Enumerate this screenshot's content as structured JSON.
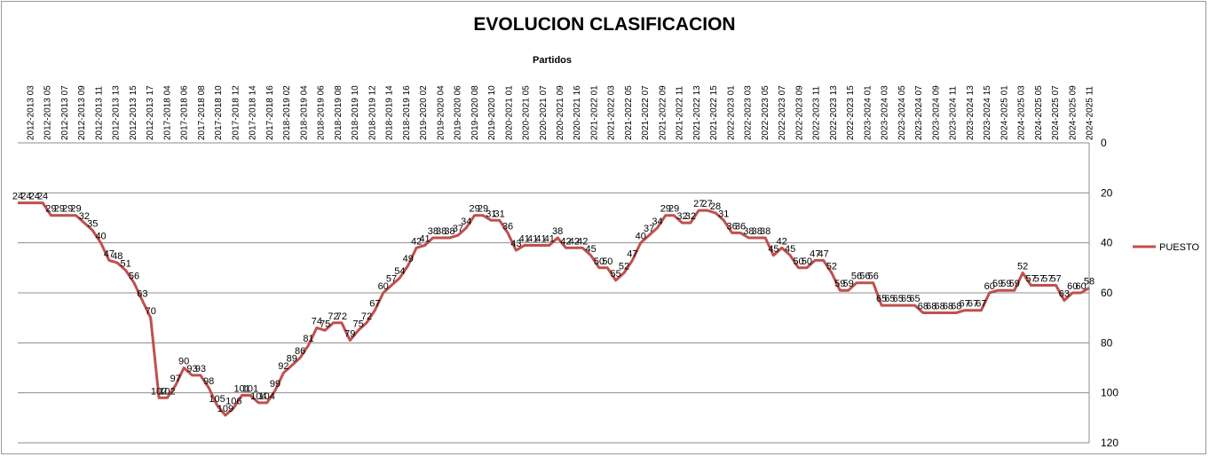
{
  "chart_data": {
    "type": "line",
    "title": "EVOLUCION CLASIFICACION",
    "xlabel": "Partidos",
    "ylabel": "",
    "ylim": [
      0,
      120
    ],
    "y_reversed": true,
    "y_ticks": [
      0,
      20,
      40,
      60,
      80,
      100,
      120
    ],
    "grid": true,
    "legend_position": "right",
    "x_axis_position": "top",
    "y_axis_position": "right",
    "series_color": "#c0504d",
    "x_tick_labels": [
      "2012-2013 03",
      "2012-2013 05",
      "2012-2013 07",
      "2012-2013 09",
      "2012-2013 11",
      "2012-2013 13",
      "2012-2013 15",
      "2012-2013 17",
      "2017-2018 04",
      "2017-2018 06",
      "2017-2018 08",
      "2017-2018 10",
      "2017-2018 12",
      "2017-2018 14",
      "2017-2018 16",
      "2018-2019 02",
      "2018-2019 04",
      "2018-2019 06",
      "2018-2019 08",
      "2018-2019 10",
      "2018-2019 12",
      "2018-2019 14",
      "2018-2019 16",
      "2019-2020 02",
      "2019-2020 04",
      "2019-2020 06",
      "2019-2020 08",
      "2019-2020 10",
      "2020-2021 01",
      "2020-2021 05",
      "2020-2021 07",
      "2020-2021 09",
      "2020-2021 16",
      "2021-2022 01",
      "2021-2022 03",
      "2021-2022 05",
      "2021-2022 07",
      "2021-2022 09",
      "2021-2022 11",
      "2021-2022 13",
      "2021-2022 15",
      "2022-2023 01",
      "2022-2023 03",
      "2022-2023 05",
      "2022-2023 07",
      "2022-2023 09",
      "2022-2023 11",
      "2022-2023 13",
      "2022-2023 15",
      "2023-2024 01",
      "2023-2024 03",
      "2023-2024 05",
      "2023-2024 07",
      "2023-2024 09",
      "2023-2024 11",
      "2023-2024 13",
      "2023-2024 15",
      "2024-2025 01",
      "2024-2025 03",
      "2024-2025 05",
      "2024-2025 07",
      "2024-2025 09",
      "2024-2025 11"
    ],
    "series": [
      {
        "name": "PUESTO",
        "values": [
          24,
          24,
          24,
          24,
          29,
          29,
          29,
          29,
          32,
          35,
          40,
          47,
          48,
          51,
          56,
          63,
          70,
          102,
          102,
          97,
          90,
          93,
          93,
          98,
          105,
          109,
          106,
          101,
          101,
          104,
          104,
          99,
          92,
          89,
          86,
          81,
          74,
          75,
          72,
          72,
          79,
          75,
          72,
          67,
          60,
          57,
          54,
          49,
          42,
          41,
          38,
          38,
          38,
          37,
          34,
          29,
          29,
          31,
          31,
          36,
          43,
          41,
          41,
          41,
          41,
          38,
          42,
          42,
          42,
          45,
          50,
          50,
          55,
          52,
          47,
          40,
          37,
          34,
          29,
          29,
          32,
          32,
          27,
          27,
          28,
          31,
          36,
          36,
          38,
          38,
          38,
          45,
          42,
          45,
          50,
          50,
          47,
          47,
          52,
          59,
          59,
          56,
          56,
          56,
          65,
          65,
          65,
          65,
          65,
          68,
          68,
          68,
          68,
          68,
          67,
          67,
          67,
          60,
          59,
          59,
          59,
          52,
          57,
          57,
          57,
          57,
          63,
          60,
          60,
          58
        ]
      }
    ]
  }
}
